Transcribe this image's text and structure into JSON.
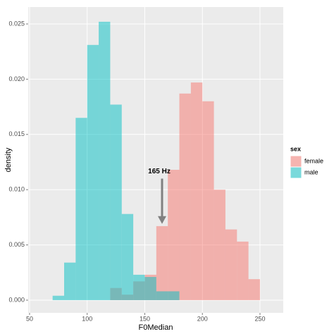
{
  "chart_data": {
    "type": "histogram",
    "x_label": "F0Median",
    "y_label": "density",
    "bins": [
      70,
      80,
      90,
      100,
      110,
      120,
      130,
      140,
      150,
      160,
      170,
      180,
      190,
      200,
      210,
      220,
      230,
      240,
      250
    ],
    "series": [
      {
        "name": "female",
        "color": "#F8766D",
        "values": [
          0,
          0,
          0,
          0,
          0,
          0.0011,
          0.0005,
          0.0017,
          0.0023,
          0.0067,
          0.0118,
          0.0187,
          0.0197,
          0.018,
          0.01,
          0.0064,
          0.0053,
          0.0019
        ]
      },
      {
        "name": "male",
        "color": "#00BFC4",
        "values": [
          0.0004,
          0.0034,
          0.0165,
          0.0231,
          0.0252,
          0.0177,
          0.0078,
          0.0023,
          0.0021,
          0.0008,
          0.0008,
          0,
          0,
          0,
          0,
          0,
          0,
          0
        ]
      }
    ],
    "legend_title": "sex",
    "annotation": {
      "label": "165 Hz",
      "x": 165,
      "y_start": 0.011,
      "y_end": 0.0069
    },
    "xlim": [
      48.8,
      270.2
    ],
    "xticks": [
      50,
      100,
      150,
      200,
      250
    ],
    "ylim": [
      -0.00115,
      0.02653
    ],
    "yticks": [
      {
        "value": 0,
        "label": "0.000"
      },
      {
        "value": 0.005,
        "label": "0.005"
      },
      {
        "value": 0.01,
        "label": "0.010"
      },
      {
        "value": 0.015,
        "label": "0.015"
      },
      {
        "value": 0.02,
        "label": "0.020"
      },
      {
        "value": 0.025,
        "label": "0.025"
      }
    ],
    "grid": true,
    "opacity": 0.5
  }
}
